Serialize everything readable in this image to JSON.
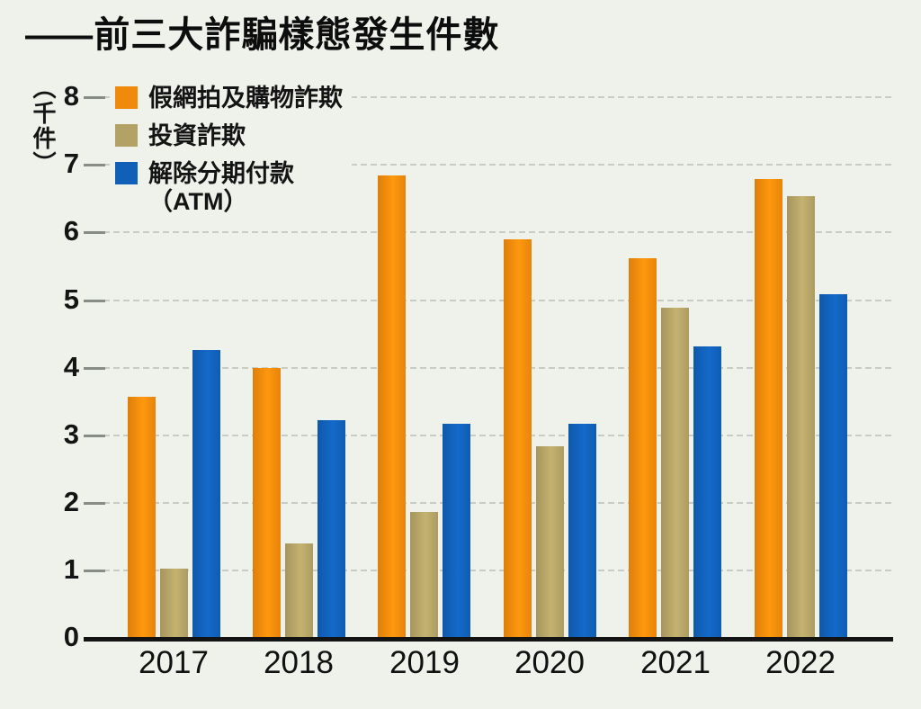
{
  "title": {
    "dash_prefix": "——",
    "text": "前三大詐騙樣態發生件數"
  },
  "y_axis": {
    "unit_label": "（千件）",
    "ticks": [
      8,
      7,
      6,
      5,
      4,
      3,
      2,
      1,
      0
    ]
  },
  "legend": {
    "items": [
      {
        "label": "假網拍及購物詐欺",
        "color": "#F08A0C"
      },
      {
        "label": "投資詐欺",
        "color": "#B3A266"
      },
      {
        "label": "解除分期付款",
        "label_line2": "（ATM）",
        "color": "#1160B8"
      }
    ]
  },
  "chart_data": {
    "type": "bar",
    "title": "前三大詐騙樣態發生件數",
    "xlabel": "",
    "ylabel": "（千件）",
    "ylim": [
      0,
      8
    ],
    "grid": "dashed-horizontal",
    "legend_position": "top-left",
    "categories": [
      "2017",
      "2018",
      "2019",
      "2020",
      "2021",
      "2022"
    ],
    "series": [
      {
        "name": "假網拍及購物詐欺",
        "color": "#F08A0C",
        "values": [
          3.57,
          4.0,
          6.84,
          5.9,
          5.62,
          6.79
        ]
      },
      {
        "name": "投資詐欺",
        "color": "#B3A266",
        "values": [
          1.03,
          1.4,
          1.87,
          2.83,
          4.89,
          6.54
        ]
      },
      {
        "name": "解除分期付款（ATM）",
        "color": "#1160B8",
        "values": [
          4.26,
          3.22,
          3.17,
          3.17,
          4.32,
          5.08
        ]
      }
    ]
  },
  "colors": {
    "background": "#EFF2EB",
    "grid_line": "#C8CCC3",
    "tick_dash": "#878C85",
    "axis_line": "#131313",
    "text": "#141414"
  }
}
